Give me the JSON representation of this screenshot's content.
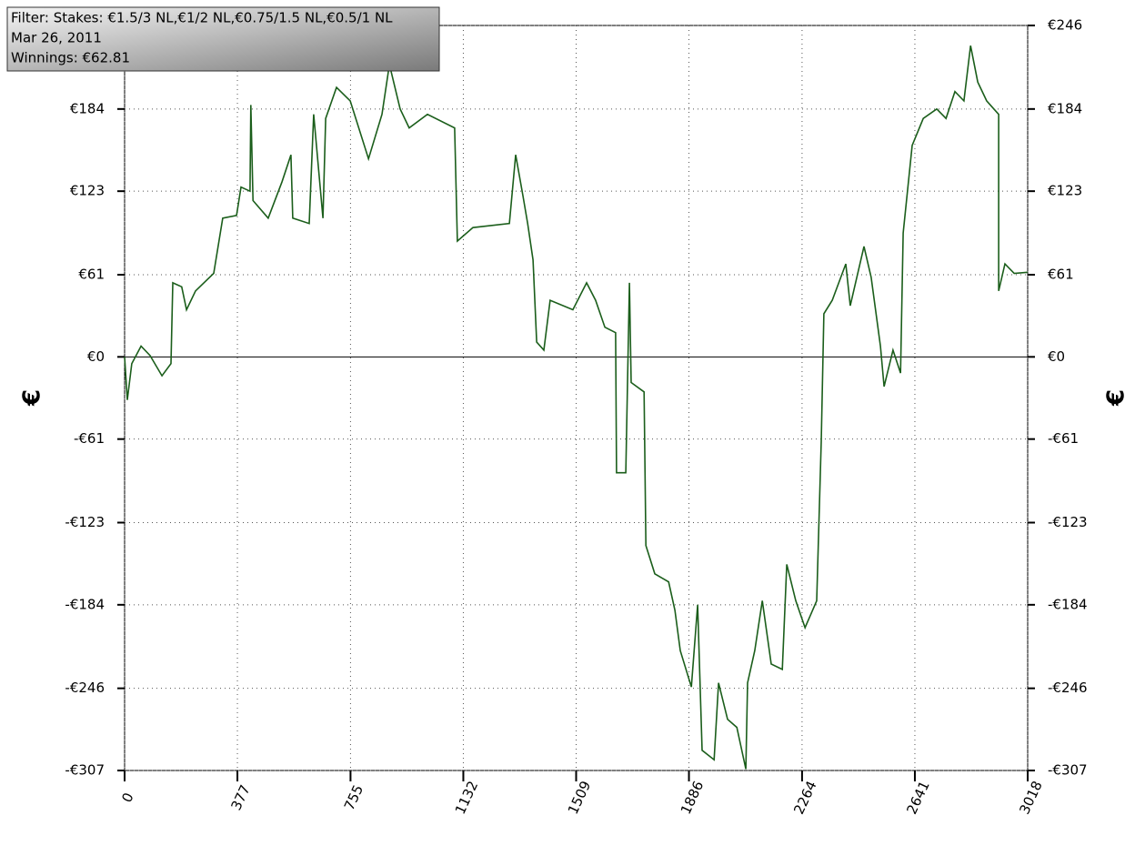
{
  "chart_data": {
    "type": "line",
    "info": [
      "Filter: Stakes: €1.5/3 NL,€1/2 NL,€0.75/1.5 NL,€0.5/1 NL",
      "Mar 26, 2011",
      "Winnings: €62.81"
    ],
    "ylabel": "€",
    "y2label": "€",
    "color": "#1b5e1b",
    "grid": true,
    "xlim": [
      0,
      3018
    ],
    "ylim": [
      -307,
      246
    ],
    "xticks": [
      0,
      377,
      755,
      1132,
      1509,
      1886,
      2264,
      2641,
      3018
    ],
    "yticks": [
      {
        "value": 246,
        "label": "€246"
      },
      {
        "value": 184,
        "label": "€184"
      },
      {
        "value": 123,
        "label": "€123"
      },
      {
        "value": 61,
        "label": "€61"
      },
      {
        "value": 0,
        "label": "€0"
      },
      {
        "value": -61,
        "label": "-€61"
      },
      {
        "value": -123,
        "label": "-€123"
      },
      {
        "value": -184,
        "label": "-€184"
      },
      {
        "value": -246,
        "label": "-€246"
      },
      {
        "value": -307,
        "label": "-€307"
      }
    ],
    "x": [
      0,
      9,
      24,
      55,
      85,
      125,
      155,
      161,
      191,
      207,
      237,
      298,
      328,
      374,
      389,
      419,
      422,
      429,
      480,
      526,
      556,
      562,
      617,
      632,
      663,
      672,
      708,
      754,
      815,
      860,
      885,
      921,
      951,
      1012,
      1103,
      1112,
      1164,
      1286,
      1307,
      1331,
      1347,
      1365,
      1377,
      1401,
      1422,
      1498,
      1544,
      1574,
      1605,
      1641,
      1644,
      1675,
      1687,
      1693,
      1736,
      1742,
      1772,
      1818,
      1839,
      1857,
      1894,
      1915,
      1930,
      1970,
      1985,
      2015,
      2046,
      2076,
      2082,
      2106,
      2131,
      2161,
      2198,
      2213,
      2243,
      2274,
      2313,
      2328,
      2337,
      2365,
      2410,
      2425,
      2471,
      2495,
      2526,
      2538,
      2568,
      2593,
      2602,
      2632,
      2669,
      2714,
      2745,
      2775,
      2805,
      2827,
      2851,
      2881,
      2921,
      2921,
      2942,
      2973,
      3018
    ],
    "values": [
      0,
      -32,
      -5,
      8,
      1,
      -14,
      -5,
      55,
      52,
      35,
      49,
      62,
      103,
      105,
      126,
      123,
      187,
      116,
      103,
      130,
      150,
      103,
      99,
      180,
      103,
      177,
      200,
      190,
      147,
      180,
      217,
      184,
      170,
      180,
      170,
      86,
      96,
      99,
      150,
      120,
      99,
      72,
      11,
      5,
      42,
      35,
      55,
      42,
      22,
      18,
      -86,
      -86,
      55,
      -19,
      -26,
      -140,
      -161,
      -167,
      -188,
      -218,
      -245,
      -184,
      -292,
      -299,
      -242,
      -269,
      -275,
      -306,
      -242,
      -218,
      -181,
      -228,
      -232,
      -154,
      -181,
      -201,
      -181,
      -63,
      32,
      42,
      69,
      38,
      82,
      59,
      8,
      -22,
      5,
      -12,
      92,
      157,
      177,
      184,
      177,
      197,
      190,
      231,
      204,
      190,
      180,
      49,
      69,
      62,
      62.81
    ]
  }
}
